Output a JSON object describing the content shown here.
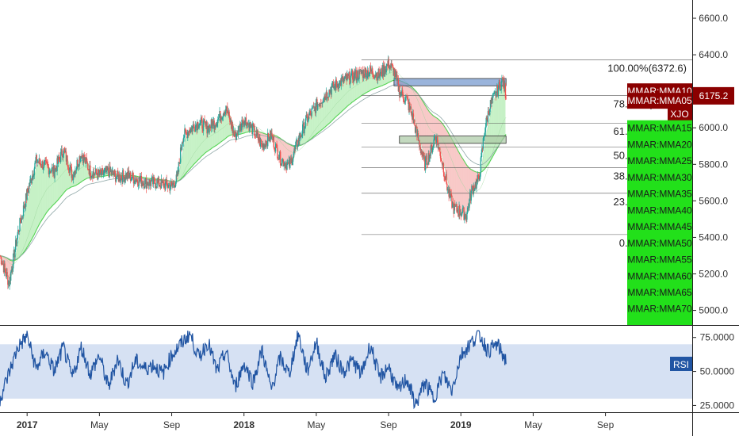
{
  "colors": {
    "background": "#ffffff",
    "up": "#26a69a",
    "down": "#ef5350",
    "ribbon_green": "#33cc33",
    "ribbon_red": "#e53935",
    "rsi_line": "#2155a3",
    "rsi_band": "#c8d7ef",
    "tag_red": "#8b0000",
    "tag_green": "#22e01a",
    "zone_blue": "#6f94cc",
    "zone_green": "#a9c9a4"
  },
  "chart_data": [
    {
      "type": "candlestick",
      "symbol": "XJO",
      "last_price_label": "6175.2",
      "y_ticks": [
        "6600.0",
        "6400.0",
        "6200.0",
        "6000.0",
        "5800.0",
        "5600.0",
        "5400.0",
        "5200.0",
        "5000.0"
      ],
      "ylim": [
        4920,
        6700
      ],
      "x_ticks": [
        {
          "label": "2017",
          "bold": true,
          "x": 0.0
        },
        {
          "label": "May",
          "bold": false,
          "x": 4.0
        },
        {
          "label": "Sep",
          "bold": false,
          "x": 8.0
        },
        {
          "label": "2018",
          "bold": true,
          "x": 12.0
        },
        {
          "label": "May",
          "bold": false,
          "x": 16.0
        },
        {
          "label": "Sep",
          "bold": false,
          "x": 20.0
        },
        {
          "label": "2019",
          "bold": true,
          "x": 24.0
        },
        {
          "label": "May",
          "bold": false,
          "x": 28.0
        },
        {
          "label": "Sep",
          "bold": false,
          "x": 32.0
        }
      ],
      "xlim": [
        -1.5,
        36.8
      ],
      "series": [
        {
          "name": "XJO",
          "x": [
            -1.5,
            -1.0,
            -0.5,
            0.0,
            0.5,
            1.0,
            1.5,
            2.0,
            2.5,
            3.0,
            3.5,
            4.0,
            4.5,
            5.0,
            5.5,
            6.0,
            6.5,
            7.0,
            7.5,
            8.0,
            8.3,
            8.6,
            9.0,
            9.5,
            10.0,
            10.5,
            11.0,
            11.5,
            12.0,
            12.5,
            13.0,
            13.5,
            14.0,
            14.5,
            15.0,
            15.5,
            16.0,
            16.5,
            17.0,
            17.5,
            18.0,
            18.5,
            19.0,
            19.5,
            20.0,
            20.3,
            20.6,
            21.0,
            21.3,
            21.6,
            22.0,
            22.3,
            22.6,
            23.0,
            23.3,
            23.6,
            24.0,
            24.3,
            24.6,
            25.0,
            25.3,
            25.6,
            26.0,
            26.3,
            26.5
          ],
          "values": [
            5300,
            5150,
            5430,
            5640,
            5820,
            5790,
            5760,
            5880,
            5740,
            5860,
            5760,
            5740,
            5760,
            5730,
            5740,
            5720,
            5700,
            5700,
            5690,
            5680,
            5720,
            5950,
            5990,
            6030,
            6000,
            6040,
            6110,
            5950,
            6050,
            5990,
            5900,
            5960,
            5830,
            5790,
            5930,
            6050,
            6120,
            6180,
            6230,
            6260,
            6280,
            6300,
            6310,
            6290,
            6350,
            6310,
            6200,
            6150,
            6070,
            5950,
            5800,
            5860,
            5960,
            5800,
            5650,
            5560,
            5540,
            5520,
            5660,
            5720,
            5980,
            6120,
            6200,
            6260,
            6180
          ]
        }
      ],
      "fibonacci": [
        {
          "label": "100.00%(6372.6)",
          "value": 6372.6
        },
        {
          "label": "78.60%(6177.8)",
          "value": 6177.8
        },
        {
          "label": "61.80%(6026.0)",
          "value": 6026.0
        },
        {
          "label": "50.00%(5894.1)",
          "value": 5894.1
        },
        {
          "label": "38.20%(5781.3)",
          "value": 5781.3
        },
        {
          "label": "23.60%(5641.4)",
          "value": 5641.4
        },
        {
          "label": "0.00%(5415.5)",
          "value": 5415.5
        }
      ],
      "zones": [
        {
          "name": "resistance",
          "x": [
            20.3,
            26.5
          ],
          "y": [
            6230,
            6270
          ]
        },
        {
          "name": "support",
          "x": [
            20.6,
            26.5
          ],
          "y": [
            5915,
            5955
          ]
        }
      ],
      "series_tags": [
        {
          "label": "MMAR:MMA10",
          "color": "red",
          "value": 6200
        },
        {
          "label": "MMAR:MMA05",
          "color": "red",
          "value": 6148
        },
        {
          "label": "XJO",
          "color": "red",
          "value": 6075
        },
        {
          "label": "MMAR:MMA15",
          "color": "green",
          "value": 5998
        },
        {
          "label": "MMAR:MMA20",
          "color": "green",
          "value": 5908
        },
        {
          "label": "MMAR:MMA25",
          "color": "green",
          "value": 5818
        },
        {
          "label": "MMAR:MMA30",
          "color": "green",
          "value": 5728
        },
        {
          "label": "MMAR:MMA35",
          "color": "green",
          "value": 5638
        },
        {
          "label": "MMAR:MMA40",
          "color": "green",
          "value": 5548
        },
        {
          "label": "MMAR:MMA45",
          "color": "green",
          "value": 5458
        },
        {
          "label": "MMAR:MMA50",
          "color": "green",
          "value": 5368
        },
        {
          "label": "MMAR:MMA55",
          "color": "green",
          "value": 5278
        },
        {
          "label": "MMAR:MMA60",
          "color": "green",
          "value": 5188
        },
        {
          "label": "MMAR:MMA65",
          "color": "green",
          "value": 5098
        },
        {
          "label": "MMAR:MMA70",
          "color": "green",
          "value": 5008
        }
      ]
    },
    {
      "type": "line",
      "legend": "RSI",
      "y_ticks": [
        "75.0000",
        "50.0000",
        "25.0000"
      ],
      "ylim": [
        20,
        83
      ],
      "band": [
        30,
        70
      ],
      "xlim": [
        -1.5,
        36.8
      ],
      "series": [
        {
          "name": "RSI",
          "x": [
            -1.5,
            -0.5,
            0.0,
            0.5,
            1.0,
            1.5,
            2.0,
            2.5,
            3.0,
            3.5,
            4.0,
            4.5,
            5.0,
            5.5,
            6.0,
            6.5,
            7.0,
            7.5,
            8.0,
            8.5,
            9.0,
            9.5,
            10.0,
            10.5,
            11.0,
            11.5,
            12.0,
            12.5,
            13.0,
            13.5,
            14.0,
            14.5,
            15.0,
            15.5,
            16.0,
            16.5,
            17.0,
            17.5,
            18.0,
            18.5,
            19.0,
            19.5,
            20.0,
            20.5,
            21.0,
            21.5,
            22.0,
            22.5,
            23.0,
            23.5,
            24.0,
            24.5,
            25.0,
            25.5,
            26.0,
            26.5
          ],
          "values": [
            30,
            68,
            76,
            52,
            65,
            50,
            68,
            45,
            68,
            48,
            62,
            38,
            60,
            40,
            58,
            52,
            55,
            48,
            62,
            70,
            78,
            60,
            72,
            50,
            65,
            38,
            56,
            42,
            66,
            36,
            60,
            48,
            78,
            50,
            72,
            45,
            62,
            50,
            58,
            48,
            70,
            45,
            54,
            35,
            45,
            25,
            42,
            30,
            48,
            36,
            62,
            70,
            78,
            65,
            70,
            58
          ]
        }
      ]
    }
  ]
}
